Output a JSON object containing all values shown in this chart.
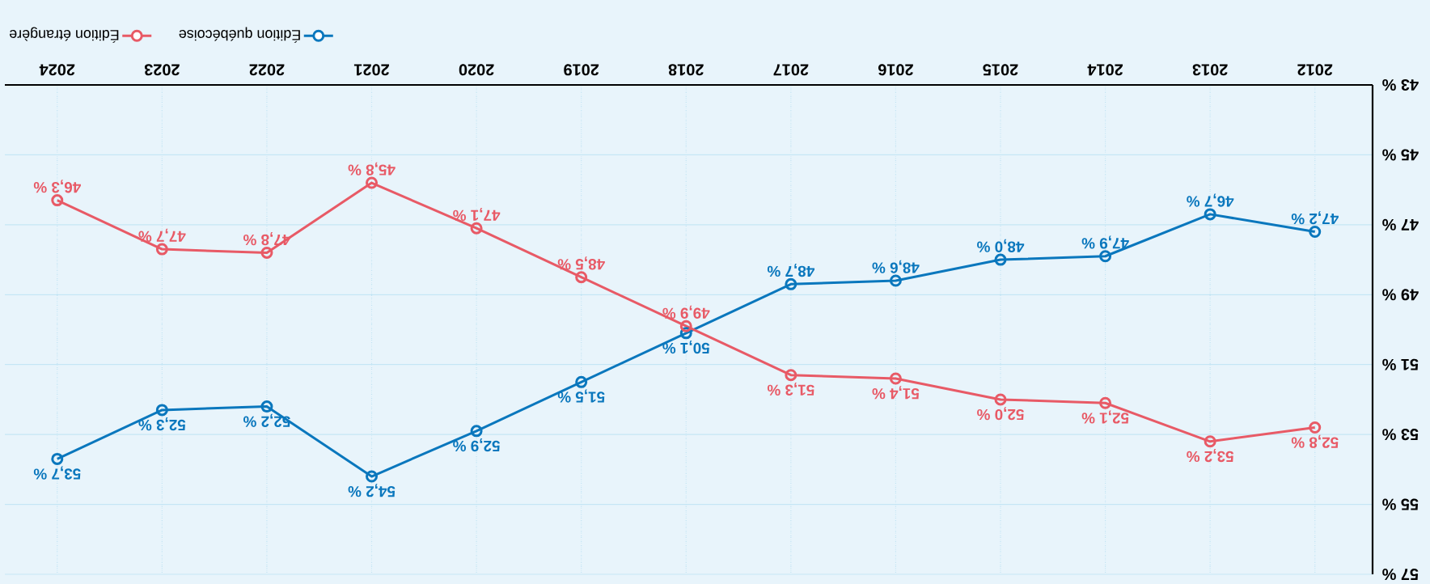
{
  "chart_data": {
    "type": "line",
    "x": [
      2012,
      2013,
      2014,
      2015,
      2016,
      2017,
      2018,
      2019,
      2020,
      2021,
      2022,
      2023,
      2024
    ],
    "xlim": [
      2024.5,
      2011.45
    ],
    "xticks": [
      2012,
      2013,
      2014,
      2015,
      2016,
      2017,
      2018,
      2019,
      2020,
      2021,
      2022,
      2023,
      2024
    ],
    "ylim": [
      57,
      43
    ],
    "yticks": [
      {
        "value": 43,
        "label": "43 %"
      },
      {
        "value": 45,
        "label": "45 %"
      },
      {
        "value": 47,
        "label": "47 %"
      },
      {
        "value": 49,
        "label": "49 %"
      },
      {
        "value": 51,
        "label": "51 %"
      },
      {
        "value": 53,
        "label": "53 %"
      },
      {
        "value": 55,
        "label": "55 %"
      },
      {
        "value": 57,
        "label": "57 %"
      }
    ],
    "series": [
      {
        "name": "Édition québécoise",
        "color": "#0a77bd",
        "values": [
          47.2,
          46.7,
          47.9,
          48.0,
          48.6,
          48.7,
          50.1,
          51.5,
          52.9,
          54.2,
          52.2,
          52.3,
          53.7
        ],
        "value_labels": [
          "47,2 %",
          "46,7 %",
          "47,9 %",
          "48,0 %",
          "48,6 %",
          "48,7 %",
          "50,1 %",
          "51,5 %",
          "52,9 %",
          "54,2 %",
          "52,2 %",
          "52,3 %",
          "53,7 %"
        ]
      },
      {
        "name": "Édition étrangère",
        "color": "#e85a66",
        "values": [
          52.8,
          53.2,
          52.1,
          52.0,
          51.4,
          51.3,
          49.9,
          48.5,
          47.1,
          45.8,
          47.8,
          47.7,
          46.3
        ],
        "value_labels": [
          "52,8 %",
          "53,2 %",
          "52,1 %",
          "52,0 %",
          "51,4 %",
          "51,3 %",
          "49,9 %",
          "48,5 %",
          "47,1 %",
          "45,8 %",
          "47,8 %",
          "47,7 %",
          "46,3 %"
        ]
      }
    ],
    "grid": true,
    "legend": "top left",
    "marker": "circle",
    "line_style": "solid"
  }
}
